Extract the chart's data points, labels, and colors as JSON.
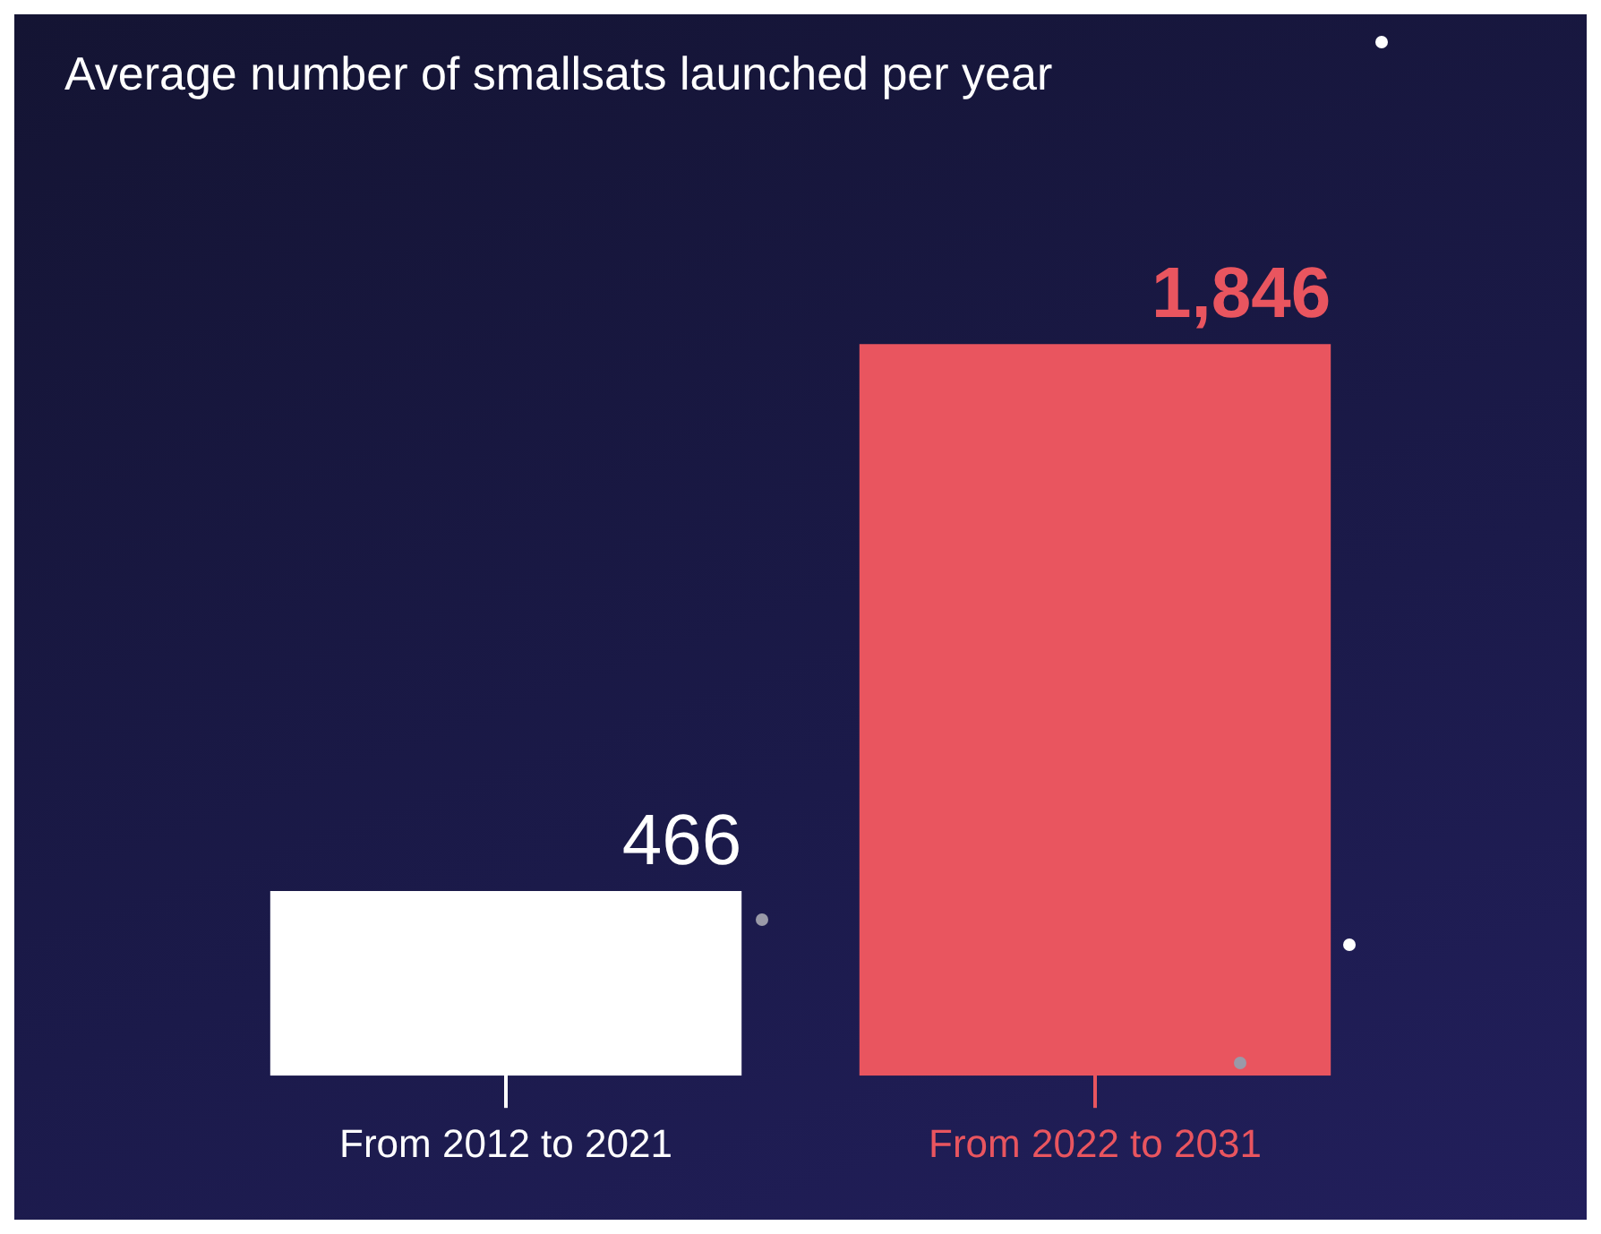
{
  "chart_data": {
    "type": "bar",
    "title": "Average number of smallsats launched per year",
    "categories": [
      "From 2012 to 2021",
      "From 2022 to 2031"
    ],
    "values": [
      466,
      1846
    ],
    "colors": [
      "#ffffff",
      "#e9555f"
    ],
    "value_labels": [
      "466",
      "1,846"
    ],
    "legend": false
  }
}
